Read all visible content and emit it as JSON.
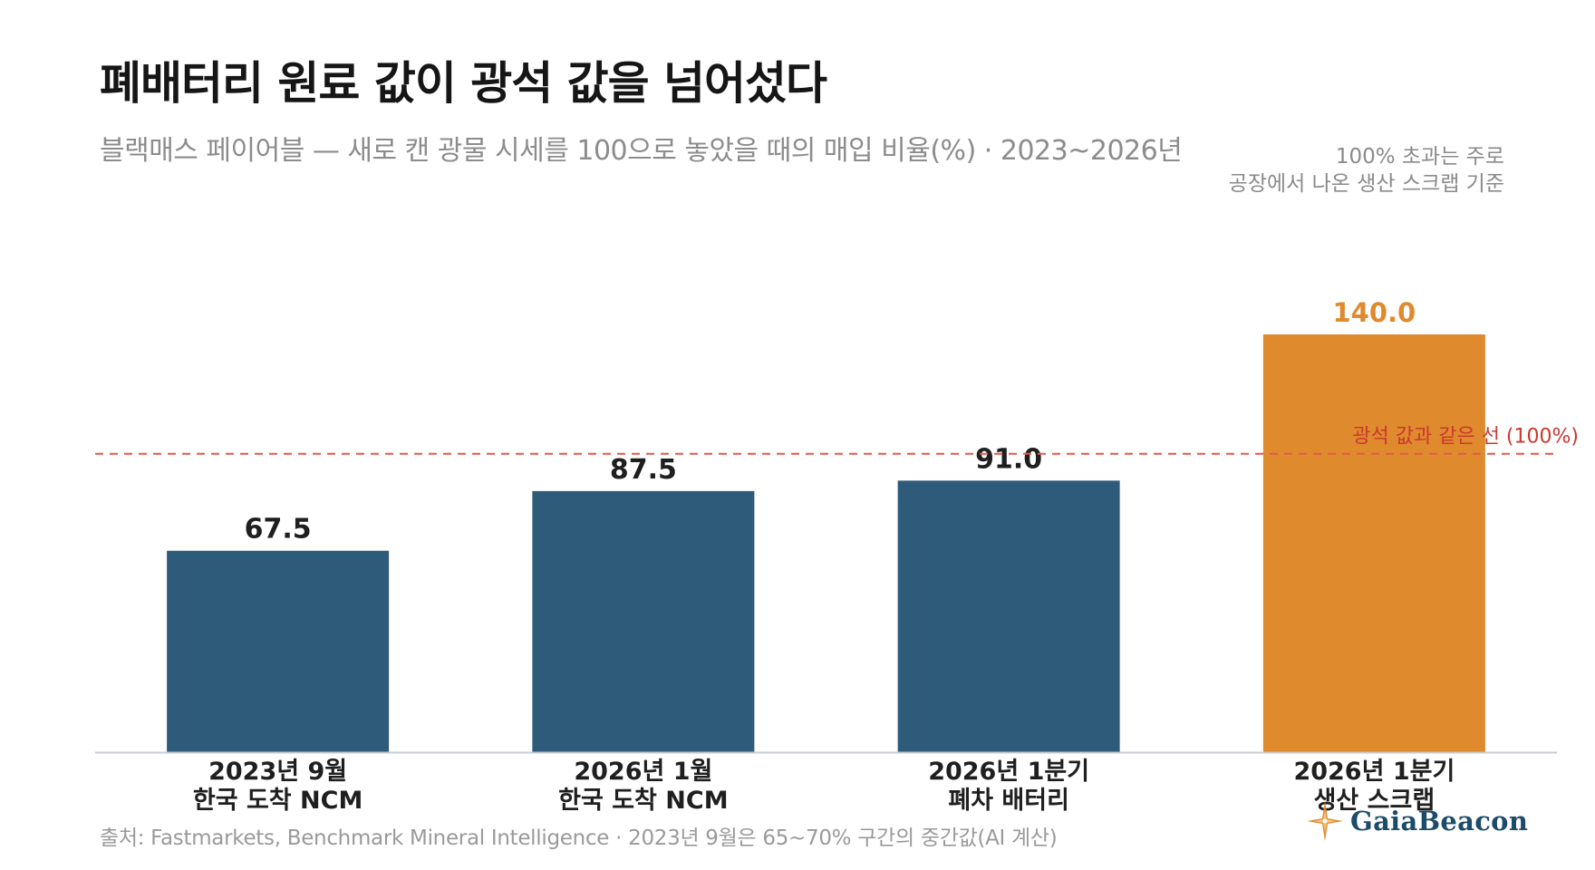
{
  "title": "폐배터리 원료 값이 광석 값을 넘어섰다",
  "subtitle": "블랙매스 페이어블 — 새로 캔 광물 시세를 100으로 놓았을 때의 매입 비율(%) · 2023~2026년",
  "side_note": {
    "line1": "100% 초과는 주로",
    "line2": "공장에서 나온 생산 스크랩 기준"
  },
  "source": "출처: Fastmarkets, Benchmark Mineral Intelligence · 2023년 9월은 65~70% 구간의 중간값(AI 계산)",
  "logo": {
    "text": "GaiaBeacon",
    "icon": "compass-star-icon"
  },
  "colors": {
    "bar_default": "#2e5b7a",
    "bar_highlight": "#e08a2e",
    "reference_line": "#e05a4e",
    "reference_label": "#c9392f",
    "value_default": "#1f1f1f",
    "value_highlight": "#e08a2e"
  },
  "chart_data": {
    "type": "bar",
    "categories": [
      [
        "2023년 9월",
        "한국 도착 NCM"
      ],
      [
        "2026년 1월",
        "한국 도착 NCM"
      ],
      [
        "2026년 1분기",
        "폐차 배터리"
      ],
      [
        "2026년 1분기",
        "생산 스크랩"
      ]
    ],
    "values": [
      67.5,
      87.5,
      91.0,
      140.0
    ],
    "value_labels": [
      "67.5",
      "87.5",
      "91.0",
      "140.0"
    ],
    "highlight_index": 3,
    "ylim": [
      0,
      160
    ],
    "grid": false,
    "reference_line": {
      "value": 100,
      "label": "광석 값과 같은 선 (100%)"
    }
  }
}
